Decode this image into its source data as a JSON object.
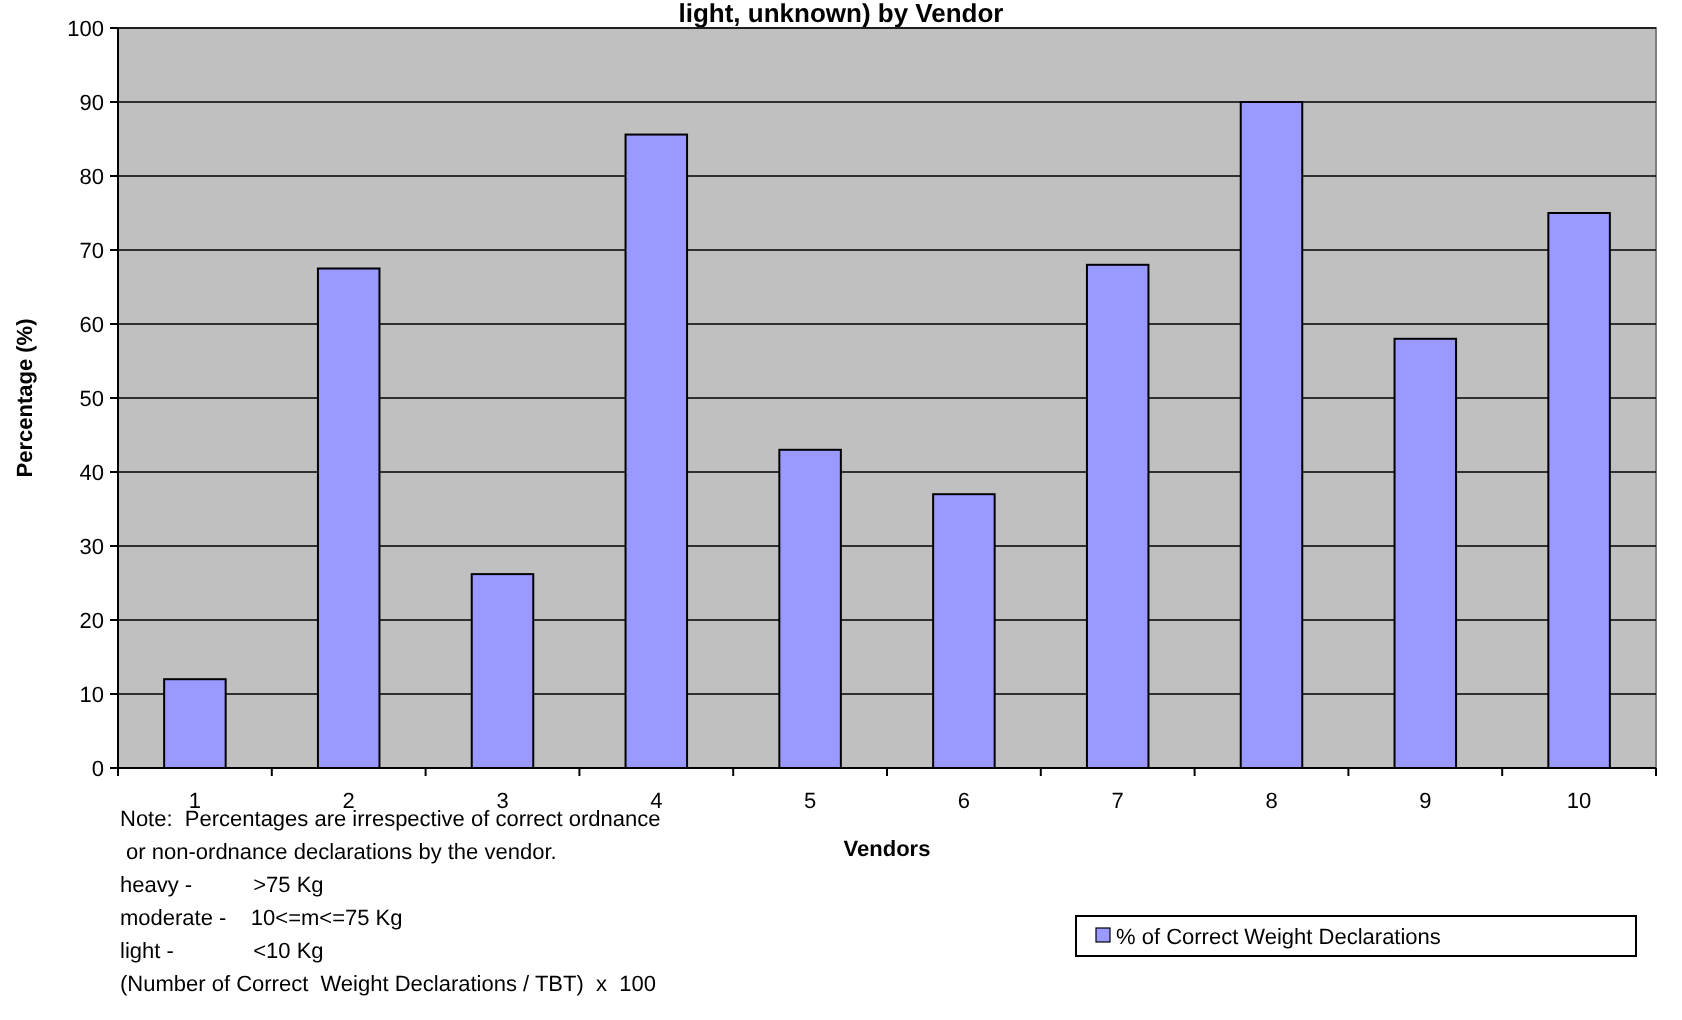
{
  "chart_data": {
    "type": "bar",
    "title": "light, unknown) by Vendor",
    "xlabel": "Vendors",
    "ylabel": "Percentage (%)",
    "categories": [
      "1",
      "2",
      "3",
      "4",
      "5",
      "6",
      "7",
      "8",
      "9",
      "10"
    ],
    "series": [
      {
        "name": "% of Correct Weight Declarations",
        "color": "#9999ff",
        "values": [
          12,
          67.5,
          26.2,
          85.6,
          43,
          37,
          68,
          90,
          58,
          75
        ]
      }
    ],
    "ylim": [
      0,
      100
    ],
    "yticks": [
      0,
      10,
      20,
      30,
      40,
      50,
      60,
      70,
      80,
      90,
      100
    ],
    "grid": "y",
    "legend": "bottom right",
    "annotations": [
      "Note:  Percentages are irrespective of correct ordnance\n or non-ordnance declarations by the vendor.\nheavy -          >75 Kg\nmoderate -    10<=m<=75 Kg\nlight -             <10 Kg\n(Number of Correct  Weight Declarations / TBT)  x  100"
    ]
  }
}
